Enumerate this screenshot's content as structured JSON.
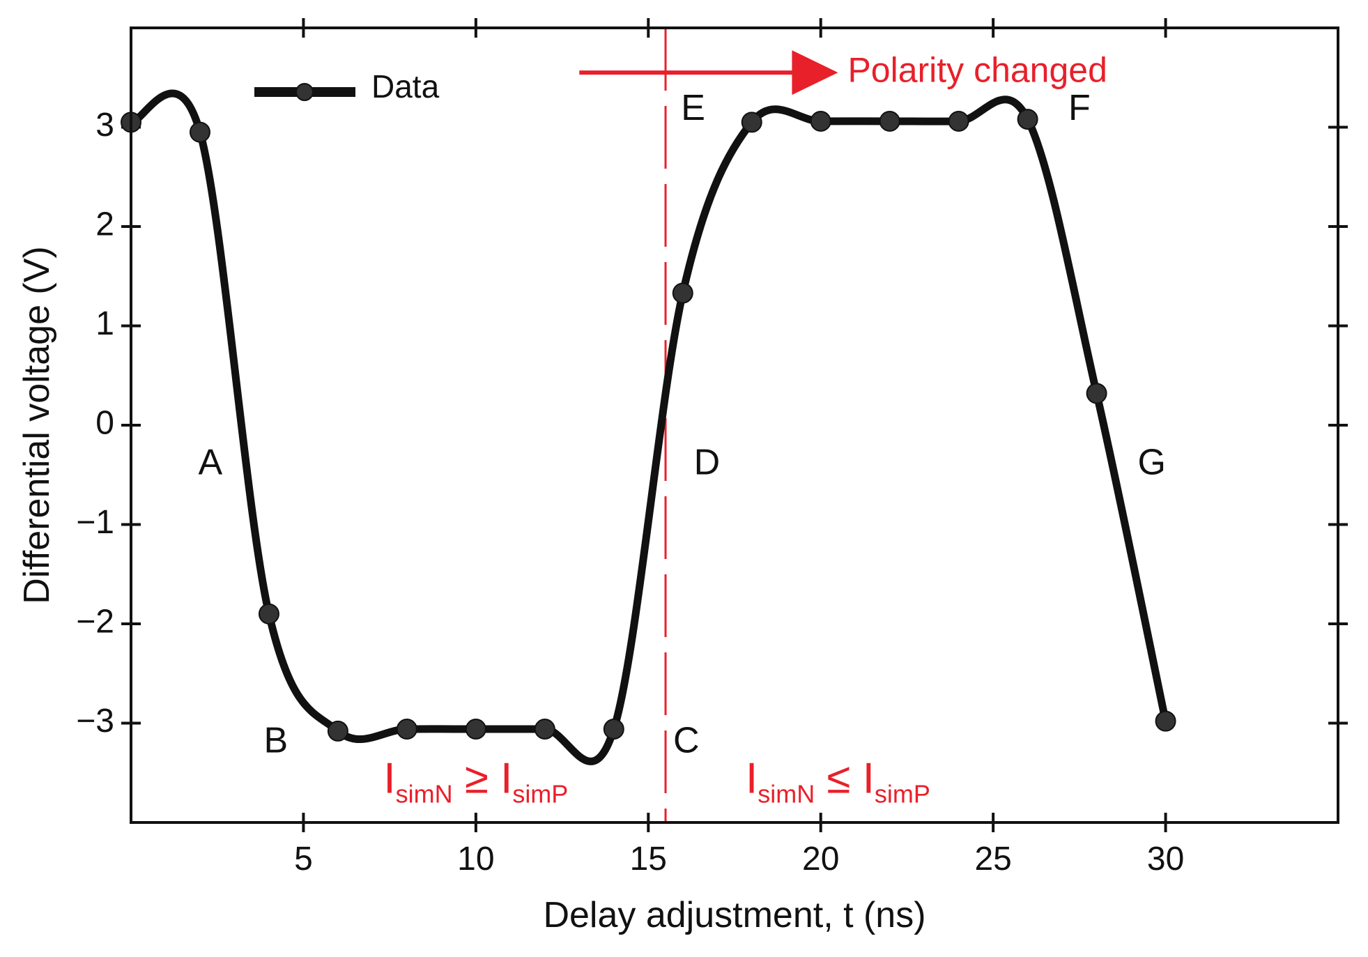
{
  "chart_data": {
    "type": "line",
    "xlabel": "Delay adjustment, t (ns)",
    "ylabel": "Differential voltage (V)",
    "xlim": [
      0,
      35
    ],
    "ylim": [
      -4,
      4
    ],
    "x_ticks": [
      5,
      10,
      15,
      20,
      25,
      30
    ],
    "x_tick_labels": [
      "5",
      "10",
      "15",
      "20",
      "25",
      "30"
    ],
    "y_ticks": [
      3,
      2,
      1,
      0,
      -1,
      -2,
      -3
    ],
    "y_tick_labels": [
      "3",
      "2",
      "1",
      "0",
      "−1",
      "−2",
      "−3"
    ],
    "legend": {
      "position": "top-left",
      "entries": [
        "Data"
      ]
    },
    "series": [
      {
        "name": "Data",
        "color": "#111111",
        "x": [
          0,
          2,
          4,
          6,
          8,
          10,
          12,
          14,
          16,
          18,
          20,
          22,
          24,
          26,
          28,
          30
        ],
        "y": [
          3.05,
          2.95,
          -1.9,
          -3.08,
          -3.06,
          -3.06,
          -3.06,
          -3.06,
          1.33,
          3.05,
          3.06,
          3.06,
          3.06,
          3.08,
          0.32,
          -2.98
        ]
      }
    ],
    "point_labels": [
      {
        "text": "A",
        "x": 2.3,
        "y": -0.4
      },
      {
        "text": "B",
        "x": 4.2,
        "y": -3.2
      },
      {
        "text": "C",
        "x": 16.1,
        "y": -3.2
      },
      {
        "text": "D",
        "x": 16.7,
        "y": -0.4
      },
      {
        "text": "E",
        "x": 16.3,
        "y": 3.17
      },
      {
        "text": "F",
        "x": 27.5,
        "y": 3.17
      },
      {
        "text": "G",
        "x": 29.6,
        "y": -0.4
      }
    ],
    "annotations": {
      "color": "#e8202a",
      "divider_x": 15.5,
      "arrow_label": "Polarity changed",
      "arrow_from": {
        "x": 13,
        "y": 3.55
      },
      "arrow_to": {
        "x": 20.5,
        "y": 3.55
      },
      "region_left": {
        "x": 10,
        "y": -3.7,
        "I1": "I",
        "sub1": "simN",
        "op": "≥",
        "I2": "I",
        "sub2": "simP"
      },
      "region_right": {
        "x": 20.5,
        "y": -3.7,
        "I1": "I",
        "sub1": "simN",
        "op": "≤",
        "I2": "I",
        "sub2": "simP"
      }
    }
  }
}
